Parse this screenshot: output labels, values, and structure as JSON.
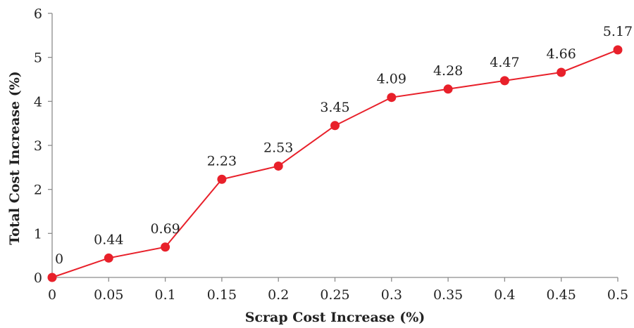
{
  "chart_data": {
    "type": "line",
    "xlabel": "Scrap Cost Increase (%)",
    "ylabel": "Total Cost Increase (%)",
    "x": [
      0,
      0.05,
      0.1,
      0.15,
      0.2,
      0.25,
      0.3,
      0.35,
      0.4,
      0.45,
      0.5
    ],
    "x_tick_labels": [
      "0",
      "0.05",
      "0.1",
      "0.15",
      "0.2",
      "0.25",
      "0.3",
      "0.35",
      "0.4",
      "0.45",
      "0.5"
    ],
    "y_tick_labels": [
      "0",
      "1",
      "2",
      "3",
      "4",
      "5",
      "6"
    ],
    "xlim": [
      0,
      0.5
    ],
    "ylim": [
      0,
      6
    ],
    "grid": false,
    "series": [
      {
        "values": [
          0,
          0.44,
          0.69,
          2.23,
          2.53,
          3.45,
          4.09,
          4.28,
          4.47,
          4.66,
          5.17
        ],
        "data_labels": [
          "0",
          "0.44",
          "0.69",
          "2.23",
          "2.53",
          "3.45",
          "4.09",
          "4.28",
          "4.47",
          "4.66",
          "5.17"
        ],
        "color": "#e8202a"
      }
    ],
    "axis_color": "#8c8c8c"
  }
}
